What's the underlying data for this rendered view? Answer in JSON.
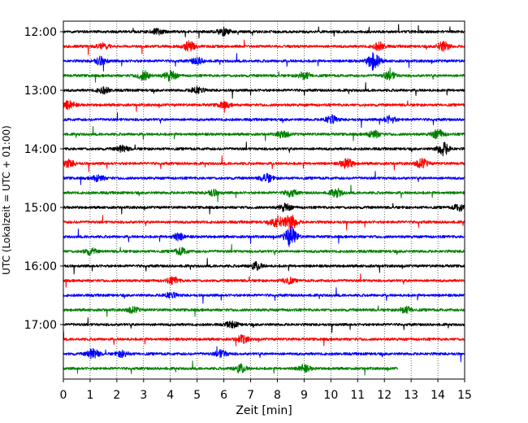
{
  "chart_data": {
    "type": "line",
    "title": "",
    "xlabel": "Zeit  [min]",
    "ylabel": "UTC (Lokalzeit = UTC + 01:00)",
    "xlim": [
      0,
      15
    ],
    "x_ticks": [
      "0",
      "1",
      "2",
      "3",
      "4",
      "5",
      "6",
      "7",
      "8",
      "9",
      "10",
      "11",
      "12",
      "13",
      "14",
      "15"
    ],
    "hour_labels": [
      "12:00",
      "13:00",
      "14:00",
      "15:00",
      "16:00",
      "17:00"
    ],
    "grid": "vertical dotted",
    "trace_colors": [
      "#000000",
      "#ff0000",
      "#0000ff",
      "#008000"
    ],
    "rows": [
      {
        "start": "12:00",
        "color": "#000000",
        "end_min": 15,
        "events": [
          [
            6.0,
            1.6
          ],
          [
            3.5,
            1.2
          ]
        ]
      },
      {
        "start": "12:15",
        "color": "#ff0000",
        "end_min": 15,
        "events": [
          [
            4.7,
            2.2
          ],
          [
            11.8,
            1.6
          ],
          [
            14.2,
            2.2
          ],
          [
            1.5,
            1.3
          ]
        ]
      },
      {
        "start": "12:30",
        "color": "#0000ff",
        "end_min": 15,
        "events": [
          [
            11.6,
            4.0
          ],
          [
            1.4,
            1.8
          ],
          [
            5.0,
            1.5
          ]
        ]
      },
      {
        "start": "12:45",
        "color": "#008000",
        "end_min": 15,
        "events": [
          [
            4.0,
            2.2
          ],
          [
            3.0,
            2.0
          ],
          [
            9.0,
            1.6
          ],
          [
            12.2,
            1.8
          ]
        ]
      },
      {
        "start": "13:00",
        "color": "#000000",
        "end_min": 15,
        "events": [
          [
            5.0,
            1.6
          ],
          [
            1.5,
            1.3
          ]
        ]
      },
      {
        "start": "13:15",
        "color": "#ff0000",
        "end_min": 15,
        "events": [
          [
            0.2,
            1.8
          ],
          [
            6.0,
            1.3
          ]
        ]
      },
      {
        "start": "13:30",
        "color": "#0000ff",
        "end_min": 15,
        "events": [
          [
            10.0,
            1.8
          ],
          [
            12.2,
            1.5
          ]
        ]
      },
      {
        "start": "13:45",
        "color": "#008000",
        "end_min": 15,
        "events": [
          [
            11.6,
            1.6
          ],
          [
            14.0,
            2.0
          ],
          [
            8.2,
            1.4
          ]
        ]
      },
      {
        "start": "14:00",
        "color": "#000000",
        "end_min": 15,
        "events": [
          [
            14.2,
            2.8
          ],
          [
            2.2,
            1.4
          ]
        ]
      },
      {
        "start": "14:15",
        "color": "#ff0000",
        "end_min": 15,
        "events": [
          [
            10.6,
            2.2
          ],
          [
            13.4,
            2.0
          ],
          [
            0.2,
            1.6
          ]
        ]
      },
      {
        "start": "14:30",
        "color": "#0000ff",
        "end_min": 15,
        "events": [
          [
            7.6,
            1.8
          ],
          [
            1.3,
            1.4
          ]
        ]
      },
      {
        "start": "14:45",
        "color": "#008000",
        "end_min": 15,
        "events": [
          [
            10.2,
            1.8
          ],
          [
            8.5,
            1.5
          ],
          [
            5.6,
            1.3
          ]
        ]
      },
      {
        "start": "15:00",
        "color": "#000000",
        "end_min": 15,
        "events": [
          [
            8.3,
            1.6
          ],
          [
            14.8,
            1.5
          ]
        ]
      },
      {
        "start": "15:15",
        "color": "#ff0000",
        "end_min": 15,
        "events": [
          [
            8.0,
            2.6
          ],
          [
            8.5,
            3.5
          ]
        ]
      },
      {
        "start": "15:30",
        "color": "#0000ff",
        "end_min": 15,
        "events": [
          [
            8.5,
            4.5
          ],
          [
            4.3,
            1.5
          ]
        ]
      },
      {
        "start": "15:45",
        "color": "#008000",
        "end_min": 15,
        "events": [
          [
            4.4,
            1.5
          ],
          [
            1.0,
            1.3
          ]
        ]
      },
      {
        "start": "16:00",
        "color": "#000000",
        "end_min": 15,
        "events": [
          [
            7.2,
            1.6
          ]
        ]
      },
      {
        "start": "16:15",
        "color": "#ff0000",
        "end_min": 15,
        "events": [
          [
            4.1,
            1.4
          ],
          [
            8.4,
            1.3
          ]
        ]
      },
      {
        "start": "16:30",
        "color": "#0000ff",
        "end_min": 15,
        "events": [
          [
            4.0,
            1.3
          ]
        ]
      },
      {
        "start": "16:45",
        "color": "#008000",
        "end_min": 15,
        "events": [
          [
            12.8,
            1.4
          ],
          [
            2.6,
            1.2
          ]
        ]
      },
      {
        "start": "17:00",
        "color": "#000000",
        "end_min": 15,
        "events": [
          [
            6.3,
            1.3
          ]
        ]
      },
      {
        "start": "17:15",
        "color": "#ff0000",
        "end_min": 15,
        "events": [
          [
            6.7,
            1.6
          ]
        ]
      },
      {
        "start": "17:30",
        "color": "#0000ff",
        "end_min": 15,
        "events": [
          [
            1.1,
            2.2
          ],
          [
            5.9,
            1.6
          ],
          [
            2.2,
            1.3
          ]
        ]
      },
      {
        "start": "17:45",
        "color": "#008000",
        "end_min": 12.5,
        "events": [
          [
            6.6,
            1.8
          ],
          [
            9.0,
            1.5
          ]
        ]
      }
    ]
  }
}
